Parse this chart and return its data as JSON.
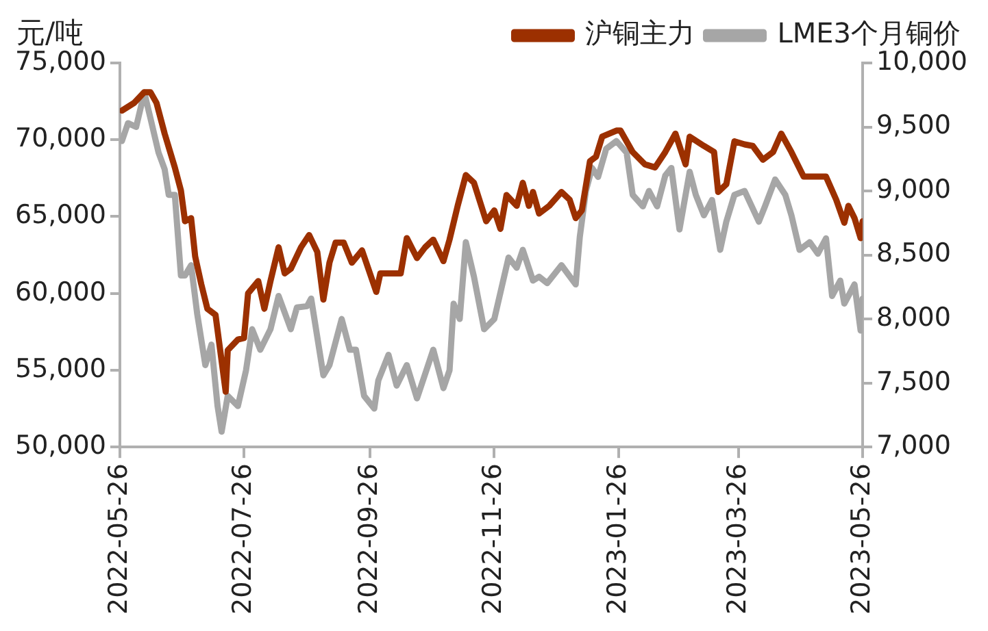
{
  "chart_data": {
    "type": "line",
    "ylabel": "元/吨",
    "legend": "top",
    "grid": false,
    "marker": "none",
    "line_style": "solid",
    "xlim": [
      "2022-05-26",
      "2023-05-26"
    ],
    "xticks": [
      "2022-05-26",
      "2022-07-26",
      "2022-09-26",
      "2022-11-26",
      "2023-01-26",
      "2023-03-26",
      "2023-05-26"
    ],
    "ylim": [
      50000,
      75000
    ],
    "yticks": [
      {
        "value": 50000,
        "label": "50,000"
      },
      {
        "value": 55000,
        "label": "55,000"
      },
      {
        "value": 60000,
        "label": "60,000"
      },
      {
        "value": 65000,
        "label": "65,000"
      },
      {
        "value": 70000,
        "label": "70,000"
      },
      {
        "value": 75000,
        "label": "75,000"
      }
    ],
    "y2lim": [
      7000,
      10000
    ],
    "y2ticks": [
      {
        "value": 7000,
        "label": "7,000"
      },
      {
        "value": 7500,
        "label": "7,500"
      },
      {
        "value": 8000,
        "label": "8,000"
      },
      {
        "value": 8500,
        "label": "8,500"
      },
      {
        "value": 9000,
        "label": "9,000"
      },
      {
        "value": 9500,
        "label": "9,500"
      },
      {
        "value": 10000,
        "label": "10,000"
      }
    ],
    "series": [
      {
        "name": "沪铜主力",
        "color": "#9c3000",
        "x": [
          "2022-05-27",
          "2022-06-02",
          "2022-06-07",
          "2022-06-10",
          "2022-06-13",
          "2022-06-17",
          "2022-06-22",
          "2022-06-25",
          "2022-06-27",
          "2022-06-30",
          "2022-07-02",
          "2022-07-05",
          "2022-07-08",
          "2022-07-12",
          "2022-07-14",
          "2022-07-17",
          "2022-07-18",
          "2022-07-23",
          "2022-07-26",
          "2022-07-28",
          "2022-08-02",
          "2022-08-05",
          "2022-08-08",
          "2022-08-12",
          "2022-08-15",
          "2022-08-18",
          "2022-08-23",
          "2022-08-27",
          "2022-08-31",
          "2022-09-03",
          "2022-09-06",
          "2022-09-09",
          "2022-09-13",
          "2022-09-17",
          "2022-09-22",
          "2022-09-29",
          "2022-10-01",
          "2022-10-11",
          "2022-10-14",
          "2022-10-19",
          "2022-10-23",
          "2022-10-27",
          "2022-11-01",
          "2022-11-04",
          "2022-11-08",
          "2022-11-12",
          "2022-11-16",
          "2022-11-22",
          "2022-11-26",
          "2022-11-29",
          "2022-12-02",
          "2022-12-07",
          "2022-12-10",
          "2022-12-13",
          "2022-12-15",
          "2022-12-18",
          "2022-12-23",
          "2022-12-29",
          "2023-01-02",
          "2023-01-05",
          "2023-01-08",
          "2023-01-12",
          "2023-01-15",
          "2023-01-18",
          "2023-01-25",
          "2023-01-27",
          "2023-02-02",
          "2023-02-08",
          "2023-02-13",
          "2023-02-18",
          "2023-02-23",
          "2023-02-28",
          "2023-03-02",
          "2023-03-09",
          "2023-03-14",
          "2023-03-16",
          "2023-03-20",
          "2023-03-24",
          "2023-03-29",
          "2023-04-02",
          "2023-04-07",
          "2023-04-12",
          "2023-04-16",
          "2023-04-21",
          "2023-04-27",
          "2023-05-01",
          "2023-05-08",
          "2023-05-13",
          "2023-05-17",
          "2023-05-19",
          "2023-05-22",
          "2023-05-25",
          "2023-05-26"
        ],
        "values": [
          71900,
          72400,
          73100,
          73100,
          72400,
          70400,
          68200,
          66700,
          64700,
          64900,
          62400,
          60600,
          59000,
          58600,
          56600,
          53600,
          56300,
          57000,
          57100,
          60000,
          60800,
          59000,
          60800,
          63000,
          61300,
          61600,
          63000,
          63800,
          62700,
          59600,
          62000,
          63300,
          63300,
          62000,
          62800,
          60100,
          61300,
          61300,
          63600,
          62300,
          63000,
          63500,
          62100,
          63500,
          65700,
          67700,
          67200,
          64700,
          65400,
          64200,
          66400,
          65700,
          67200,
          65700,
          66600,
          65200,
          65700,
          66600,
          66100,
          64900,
          65400,
          68600,
          68900,
          70200,
          70600,
          70600,
          69200,
          68400,
          68200,
          69200,
          70400,
          68400,
          70200,
          69600,
          69200,
          66600,
          67100,
          69900,
          69700,
          69600,
          68700,
          69200,
          70400,
          69200,
          67600,
          67600,
          67600,
          66100,
          64600,
          65700,
          64900,
          63600,
          64700
        ]
      },
      {
        "name": "LME3个月铜价",
        "color": "#a6a6a6",
        "axis": "y2",
        "x": [
          "2022-05-27",
          "2022-05-30",
          "2022-06-03",
          "2022-06-07",
          "2022-06-10",
          "2022-06-14",
          "2022-06-17",
          "2022-06-19",
          "2022-06-22",
          "2022-06-25",
          "2022-06-27",
          "2022-06-30",
          "2022-07-03",
          "2022-07-07",
          "2022-07-10",
          "2022-07-13",
          "2022-07-15",
          "2022-07-18",
          "2022-07-23",
          "2022-07-27",
          "2022-07-30",
          "2022-08-03",
          "2022-08-08",
          "2022-08-12",
          "2022-08-18",
          "2022-08-21",
          "2022-08-26",
          "2022-08-28",
          "2022-09-03",
          "2022-09-06",
          "2022-09-12",
          "2022-09-16",
          "2022-09-19",
          "2022-09-23",
          "2022-09-28",
          "2022-09-30",
          "2022-10-05",
          "2022-10-09",
          "2022-10-14",
          "2022-10-19",
          "2022-10-27",
          "2022-11-01",
          "2022-11-04",
          "2022-11-06",
          "2022-11-09",
          "2022-11-12",
          "2022-11-16",
          "2022-11-21",
          "2022-11-26",
          "2022-12-03",
          "2022-12-07",
          "2022-12-10",
          "2022-12-15",
          "2022-12-18",
          "2022-12-22",
          "2022-12-29",
          "2023-01-05",
          "2023-01-07",
          "2023-01-10",
          "2023-01-13",
          "2023-01-16",
          "2023-01-20",
          "2023-01-25",
          "2023-01-30",
          "2023-02-02",
          "2023-02-07",
          "2023-02-10",
          "2023-02-14",
          "2023-02-18",
          "2023-02-21",
          "2023-02-25",
          "2023-03-02",
          "2023-03-05",
          "2023-03-09",
          "2023-03-13",
          "2023-03-17",
          "2023-03-20",
          "2023-03-24",
          "2023-03-29",
          "2023-04-05",
          "2023-04-08",
          "2023-04-13",
          "2023-04-18",
          "2023-04-21",
          "2023-04-25",
          "2023-04-30",
          "2023-05-04",
          "2023-05-08",
          "2023-05-11",
          "2023-05-15",
          "2023-05-17",
          "2023-05-22",
          "2023-05-25",
          "2023-05-26"
        ],
        "values": [
          9390,
          9530,
          9500,
          9770,
          9570,
          9300,
          9170,
          8970,
          8970,
          8340,
          8340,
          8420,
          8040,
          7640,
          7800,
          7320,
          7120,
          7400,
          7320,
          7600,
          7920,
          7760,
          7920,
          8180,
          7920,
          8090,
          8100,
          8160,
          7560,
          7640,
          8000,
          7760,
          7760,
          7400,
          7300,
          7520,
          7720,
          7480,
          7640,
          7380,
          7760,
          7460,
          7600,
          8120,
          8000,
          8600,
          8330,
          7920,
          8000,
          8480,
          8400,
          8540,
          8300,
          8330,
          8280,
          8420,
          8270,
          8640,
          9000,
          9180,
          9110,
          9330,
          9390,
          9300,
          8970,
          8880,
          9000,
          8880,
          9120,
          9180,
          8700,
          9150,
          8970,
          8810,
          8930,
          8540,
          8760,
          8970,
          9000,
          8760,
          8880,
          9090,
          8970,
          8810,
          8540,
          8600,
          8510,
          8630,
          8180,
          8300,
          8120,
          8270,
          7910,
          8160
        ]
      }
    ]
  }
}
